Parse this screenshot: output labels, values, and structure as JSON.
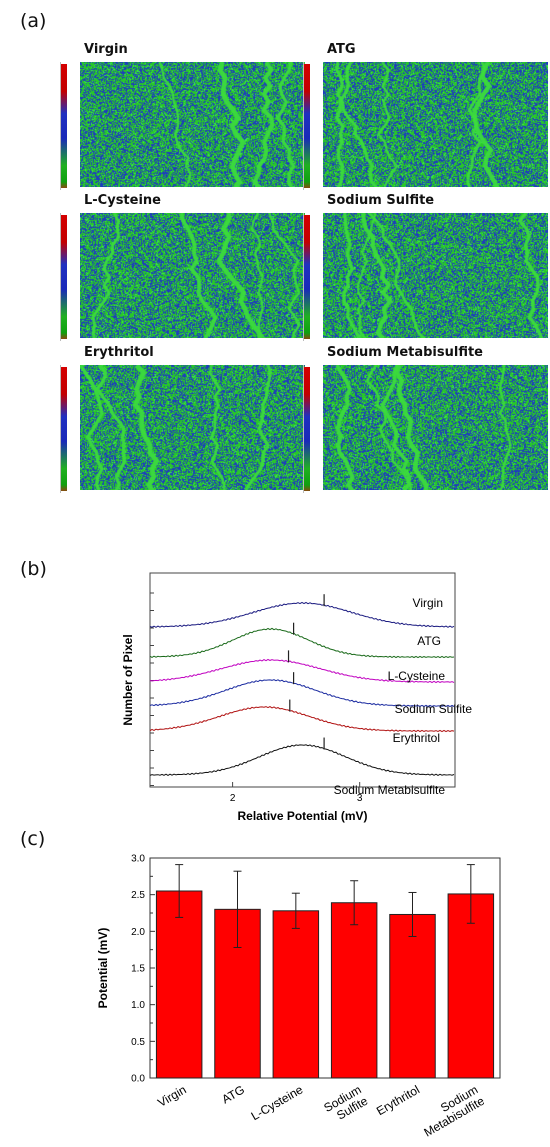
{
  "panels": {
    "a": "(a)",
    "b": "(b)",
    "c": "(c)"
  },
  "maps": [
    {
      "title": "Virgin",
      "seed": 11
    },
    {
      "title": "ATG",
      "seed": 23
    },
    {
      "title": "L-Cysteine",
      "seed": 37
    },
    {
      "title": "Sodium Sulfite",
      "seed": 41
    },
    {
      "title": "Erythritol",
      "seed": 53
    },
    {
      "title": "Sodium Metabisulfite",
      "seed": 67
    }
  ],
  "colors": {
    "map_green": "#2bd02b",
    "map_blue": "#1f3fc0",
    "bar_fill": "#ff0000"
  },
  "chart_data": [
    {
      "type": "line",
      "panel": "b",
      "xlabel": "Relative Potential (mV)",
      "ylabel": "Number of Pixel",
      "xlim": [
        1.35,
        3.75
      ],
      "xticks": [
        2,
        3
      ],
      "series": [
        {
          "name": "Virgin",
          "color": "#1a1a80",
          "peak": 2.55,
          "width": 0.55,
          "marker": 2.72
        },
        {
          "name": "ATG",
          "color": "#1a6a1a",
          "peak": 2.3,
          "width": 0.42,
          "marker": 2.48
        },
        {
          "name": "L-Cysteine",
          "color": "#c000c0",
          "peak": 2.3,
          "width": 0.55,
          "marker": 2.44
        },
        {
          "name": "Sodium Sulfite",
          "color": "#1a2aa0",
          "peak": 2.3,
          "width": 0.5,
          "marker": 2.48
        },
        {
          "name": "Erythritol",
          "color": "#b01010",
          "peak": 2.25,
          "width": 0.5,
          "marker": 2.45
        },
        {
          "name": "Sodium Metabisulfite",
          "color": "#111111",
          "peak": 2.55,
          "width": 0.48,
          "marker": 2.72
        }
      ]
    },
    {
      "type": "bar",
      "panel": "c",
      "ylabel": "Potential (mV)",
      "ylim": [
        0.0,
        3.0
      ],
      "yticks": [
        "0.0",
        "0.5",
        "1.0",
        "1.5",
        "2.0",
        "2.5",
        "3.0"
      ],
      "categories": [
        "Virgin",
        "ATG",
        "L-Cysteine",
        "Sodium\nSulfite",
        "Erythritol",
        "Sodium\nMetabisulfite"
      ],
      "values": [
        2.55,
        2.3,
        2.28,
        2.39,
        2.23,
        2.51
      ],
      "errors": [
        0.36,
        0.52,
        0.24,
        0.3,
        0.3,
        0.4
      ]
    }
  ]
}
